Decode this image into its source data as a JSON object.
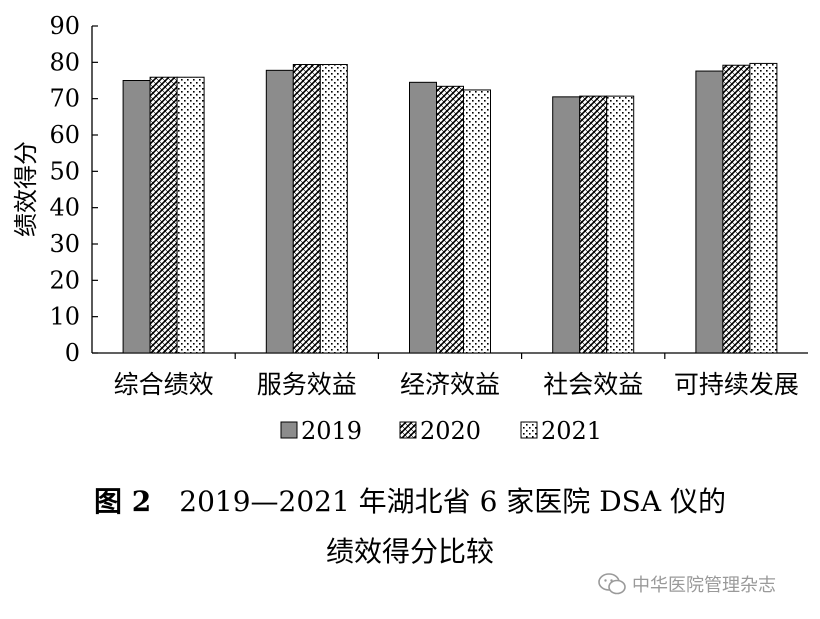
{
  "chart_data": {
    "type": "bar",
    "ylabel": "绩效得分",
    "xlabel": "",
    "ylim": [
      0,
      90
    ],
    "yticks": [
      0,
      10,
      20,
      30,
      40,
      50,
      60,
      70,
      80,
      90
    ],
    "categories": [
      "综合绩效",
      "服务效益",
      "经济效益",
      "社会效益",
      "可持续发展"
    ],
    "series": [
      {
        "name": "2019",
        "pattern": "solid-gray",
        "values": [
          75.0,
          77.8,
          74.5,
          70.5,
          77.6
        ]
      },
      {
        "name": "2020",
        "pattern": "diagonal-hatch",
        "values": [
          75.9,
          79.4,
          73.4,
          70.7,
          79.2
        ]
      },
      {
        "name": "2021",
        "pattern": "dotted",
        "values": [
          75.9,
          79.4,
          72.4,
          70.7,
          79.7
        ]
      }
    ],
    "legend_position": "bottom",
    "grid": false,
    "colors": {
      "solid": "#8c8c8c",
      "hatch": "#000000",
      "dots": "#000000",
      "bar_outline": "#000000"
    }
  },
  "caption": {
    "figure_label": "图 2",
    "line1": "2019—2021 年湖北省 6 家医院 DSA 仪的",
    "line2": "绩效得分比较"
  },
  "watermark": {
    "text": "中华医院管理杂志",
    "icon": "wechat-icon"
  }
}
